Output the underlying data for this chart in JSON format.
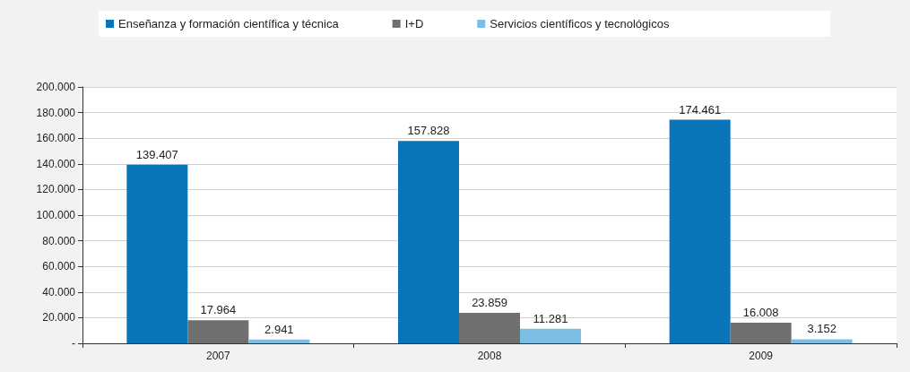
{
  "chart_data": {
    "type": "bar",
    "categories": [
      "2007",
      "2008",
      "2009"
    ],
    "series": [
      {
        "name": "Enseñanza y formación científica y técnica",
        "color": "#0a74b8",
        "values": [
          139407,
          157828,
          174461
        ],
        "value_labels": [
          "139.407",
          "157.828",
          "174.461"
        ]
      },
      {
        "name": "I+D",
        "color": "#6f6f6f",
        "values": [
          17964,
          23859,
          16008
        ],
        "value_labels": [
          "17.964",
          "23.859",
          "16.008"
        ]
      },
      {
        "name": "Servicios científicos y tecnológicos",
        "color": "#7dbfe4",
        "values": [
          2941,
          11281,
          3152
        ],
        "value_labels": [
          "2.941",
          "11.281",
          "3.152"
        ]
      }
    ],
    "ylim": [
      0,
      200000
    ],
    "yticks": [
      {
        "value": 0,
        "label": "-"
      },
      {
        "value": 20000,
        "label": "20.000"
      },
      {
        "value": 40000,
        "label": "40.000"
      },
      {
        "value": 60000,
        "label": "60.000"
      },
      {
        "value": 80000,
        "label": "80.000"
      },
      {
        "value": 100000,
        "label": "100.000"
      },
      {
        "value": 120000,
        "label": "120.000"
      },
      {
        "value": 140000,
        "label": "140.000"
      },
      {
        "value": 160000,
        "label": "160.000"
      },
      {
        "value": 180000,
        "label": "180.000"
      },
      {
        "value": 200000,
        "label": "200.000"
      }
    ],
    "grid": "y",
    "legend": "top"
  }
}
